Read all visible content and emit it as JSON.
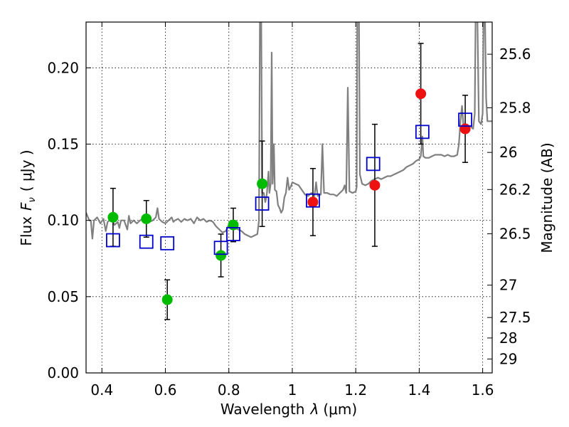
{
  "chart_data": {
    "type": "scatter",
    "xlabel_prefix": "Wavelength",
    "xlabel_symbol": "λ",
    "xlabel_unit": "(μm)",
    "ylabel_prefix": "Flux",
    "ylabel_symbol": "F",
    "ylabel_sub": "ν",
    "ylabel_unit": "( μJy )",
    "y2label": "Magnitude (AB)",
    "xlim": [
      0.35,
      1.63
    ],
    "ylim": [
      0.0,
      0.23
    ],
    "xticks": [
      0.4,
      0.6,
      0.8,
      1.0,
      1.2,
      1.4,
      1.6
    ],
    "xtick_labels": [
      "0.4",
      "0.6",
      "0.8",
      "1",
      "1.2",
      "1.4",
      "1.6"
    ],
    "yticks": [
      0.0,
      0.05,
      0.1,
      0.15,
      0.2
    ],
    "ytick_labels": [
      "0.00",
      "0.05",
      "0.10",
      "0.15",
      "0.20"
    ],
    "y2ticks": [
      {
        "label": "25.6",
        "value": 25.6
      },
      {
        "label": "25.8",
        "value": 25.8
      },
      {
        "label": "26",
        "value": 26.0
      },
      {
        "label": "26.2",
        "value": 26.2
      },
      {
        "label": "26.5",
        "value": 26.5
      },
      {
        "label": "27",
        "value": 27.0
      },
      {
        "label": "27.5",
        "value": 27.5
      },
      {
        "label": "28",
        "value": 28.0
      },
      {
        "label": "29",
        "value": 29.0
      }
    ],
    "colors": {
      "model": "#808080",
      "green": "#00bb00",
      "red": "#ee1111",
      "model_box": "#0000cc",
      "errorbar": "#000000"
    },
    "series": [
      {
        "name": "observed-green",
        "color": "green",
        "points": [
          {
            "x": 0.435,
            "y": 0.102,
            "err": 0.019
          },
          {
            "x": 0.54,
            "y": 0.101,
            "err": 0.012
          },
          {
            "x": 0.606,
            "y": 0.048,
            "err": 0.013
          },
          {
            "x": 0.775,
            "y": 0.077,
            "err": 0.014
          },
          {
            "x": 0.814,
            "y": 0.097,
            "err": 0.011
          },
          {
            "x": 0.905,
            "y": 0.124,
            "err": 0.028
          }
        ]
      },
      {
        "name": "observed-red",
        "color": "red",
        "points": [
          {
            "x": 1.065,
            "y": 0.112,
            "err": 0.022
          },
          {
            "x": 1.26,
            "y": 0.123,
            "err": 0.04
          },
          {
            "x": 1.405,
            "y": 0.183,
            "err": 0.033
          },
          {
            "x": 1.545,
            "y": 0.16,
            "err": 0.022
          }
        ]
      },
      {
        "name": "model-photometry",
        "color": "model_box",
        "points": [
          {
            "x": 0.435,
            "y": 0.087
          },
          {
            "x": 0.54,
            "y": 0.086
          },
          {
            "x": 0.606,
            "y": 0.085
          },
          {
            "x": 0.775,
            "y": 0.082
          },
          {
            "x": 0.814,
            "y": 0.091
          },
          {
            "x": 0.905,
            "y": 0.111
          },
          {
            "x": 1.065,
            "y": 0.113
          },
          {
            "x": 1.255,
            "y": 0.137
          },
          {
            "x": 1.41,
            "y": 0.158
          },
          {
            "x": 1.545,
            "y": 0.166
          }
        ]
      }
    ],
    "model_spectrum": [
      [
        0.35,
        0.105
      ],
      [
        0.36,
        0.1
      ],
      [
        0.365,
        0.1
      ],
      [
        0.37,
        0.088
      ],
      [
        0.375,
        0.1
      ],
      [
        0.385,
        0.102
      ],
      [
        0.395,
        0.098
      ],
      [
        0.405,
        0.101
      ],
      [
        0.412,
        0.093
      ],
      [
        0.418,
        0.099
      ],
      [
        0.43,
        0.101
      ],
      [
        0.44,
        0.097
      ],
      [
        0.45,
        0.099
      ],
      [
        0.455,
        0.095
      ],
      [
        0.46,
        0.1
      ],
      [
        0.47,
        0.1
      ],
      [
        0.48,
        0.094
      ],
      [
        0.485,
        0.103
      ],
      [
        0.49,
        0.098
      ],
      [
        0.5,
        0.1
      ],
      [
        0.51,
        0.098
      ],
      [
        0.52,
        0.1
      ],
      [
        0.53,
        0.101
      ],
      [
        0.54,
        0.104
      ],
      [
        0.55,
        0.099
      ],
      [
        0.56,
        0.1
      ],
      [
        0.57,
        0.102
      ],
      [
        0.575,
        0.108
      ],
      [
        0.58,
        0.101
      ],
      [
        0.59,
        0.099
      ],
      [
        0.6,
        0.098
      ],
      [
        0.61,
        0.1
      ],
      [
        0.62,
        0.102
      ],
      [
        0.625,
        0.099
      ],
      [
        0.63,
        0.1
      ],
      [
        0.64,
        0.101
      ],
      [
        0.65,
        0.099
      ],
      [
        0.66,
        0.101
      ],
      [
        0.67,
        0.1
      ],
      [
        0.68,
        0.101
      ],
      [
        0.69,
        0.098
      ],
      [
        0.7,
        0.102
      ],
      [
        0.71,
        0.1
      ],
      [
        0.72,
        0.101
      ],
      [
        0.73,
        0.099
      ],
      [
        0.74,
        0.1
      ],
      [
        0.75,
        0.099
      ],
      [
        0.76,
        0.096
      ],
      [
        0.77,
        0.094
      ],
      [
        0.78,
        0.092
      ],
      [
        0.79,
        0.093
      ],
      [
        0.8,
        0.097
      ],
      [
        0.81,
        0.096
      ],
      [
        0.82,
        0.095
      ],
      [
        0.83,
        0.094
      ],
      [
        0.84,
        0.093
      ],
      [
        0.85,
        0.091
      ],
      [
        0.86,
        0.09
      ],
      [
        0.87,
        0.089
      ],
      [
        0.88,
        0.09
      ],
      [
        0.89,
        0.091
      ],
      [
        0.895,
        0.1
      ],
      [
        0.898,
        0.24
      ],
      [
        0.902,
        0.24
      ],
      [
        0.905,
        0.118
      ],
      [
        0.91,
        0.118
      ],
      [
        0.915,
        0.112
      ],
      [
        0.918,
        0.115
      ],
      [
        0.92,
        0.118
      ],
      [
        0.925,
        0.132
      ],
      [
        0.928,
        0.118
      ],
      [
        0.932,
        0.124
      ],
      [
        0.935,
        0.21
      ],
      [
        0.938,
        0.124
      ],
      [
        0.942,
        0.15
      ],
      [
        0.945,
        0.12
      ],
      [
        0.95,
        0.119
      ],
      [
        0.955,
        0.11
      ],
      [
        0.96,
        0.108
      ],
      [
        0.965,
        0.105
      ],
      [
        0.97,
        0.107
      ],
      [
        0.975,
        0.115
      ],
      [
        0.98,
        0.118
      ],
      [
        0.985,
        0.128
      ],
      [
        0.99,
        0.12
      ],
      [
        0.995,
        0.122
      ],
      [
        1.0,
        0.125
      ],
      [
        1.01,
        0.124
      ],
      [
        1.02,
        0.123
      ],
      [
        1.03,
        0.12
      ],
      [
        1.04,
        0.117
      ],
      [
        1.05,
        0.116
      ],
      [
        1.06,
        0.118
      ],
      [
        1.07,
        0.116
      ],
      [
        1.075,
        0.125
      ],
      [
        1.08,
        0.116
      ],
      [
        1.09,
        0.117
      ],
      [
        1.095,
        0.15
      ],
      [
        1.1,
        0.118
      ],
      [
        1.11,
        0.118
      ],
      [
        1.12,
        0.117
      ],
      [
        1.13,
        0.117
      ],
      [
        1.14,
        0.116
      ],
      [
        1.15,
        0.118
      ],
      [
        1.16,
        0.12
      ],
      [
        1.165,
        0.123
      ],
      [
        1.17,
        0.118
      ],
      [
        1.175,
        0.187
      ],
      [
        1.18,
        0.119
      ],
      [
        1.19,
        0.118
      ],
      [
        1.2,
        0.119
      ],
      [
        1.203,
        0.122
      ],
      [
        1.205,
        0.24
      ],
      [
        1.21,
        0.24
      ],
      [
        1.213,
        0.13
      ],
      [
        1.22,
        0.124
      ],
      [
        1.23,
        0.123
      ],
      [
        1.24,
        0.124
      ],
      [
        1.25,
        0.126
      ],
      [
        1.26,
        0.127
      ],
      [
        1.27,
        0.128
      ],
      [
        1.28,
        0.127
      ],
      [
        1.29,
        0.128
      ],
      [
        1.3,
        0.129
      ],
      [
        1.31,
        0.129
      ],
      [
        1.32,
        0.13
      ],
      [
        1.33,
        0.131
      ],
      [
        1.34,
        0.132
      ],
      [
        1.35,
        0.133
      ],
      [
        1.36,
        0.135
      ],
      [
        1.37,
        0.136
      ],
      [
        1.38,
        0.137
      ],
      [
        1.39,
        0.139
      ],
      [
        1.4,
        0.14
      ],
      [
        1.405,
        0.142
      ],
      [
        1.41,
        0.155
      ],
      [
        1.413,
        0.142
      ],
      [
        1.42,
        0.141
      ],
      [
        1.43,
        0.141
      ],
      [
        1.44,
        0.142
      ],
      [
        1.45,
        0.143
      ],
      [
        1.46,
        0.143
      ],
      [
        1.47,
        0.143
      ],
      [
        1.48,
        0.142
      ],
      [
        1.49,
        0.143
      ],
      [
        1.5,
        0.142
      ],
      [
        1.51,
        0.142
      ],
      [
        1.52,
        0.143
      ],
      [
        1.525,
        0.15
      ],
      [
        1.53,
        0.165
      ],
      [
        1.535,
        0.175
      ],
      [
        1.54,
        0.16
      ],
      [
        1.55,
        0.16
      ],
      [
        1.56,
        0.162
      ],
      [
        1.57,
        0.16
      ],
      [
        1.575,
        0.17
      ],
      [
        1.578,
        0.24
      ],
      [
        1.583,
        0.24
      ],
      [
        1.588,
        0.165
      ],
      [
        1.595,
        0.163
      ],
      [
        1.6,
        0.17
      ],
      [
        1.603,
        0.24
      ],
      [
        1.607,
        0.24
      ],
      [
        1.611,
        0.18
      ],
      [
        1.615,
        0.165
      ],
      [
        1.63,
        0.165
      ]
    ]
  }
}
